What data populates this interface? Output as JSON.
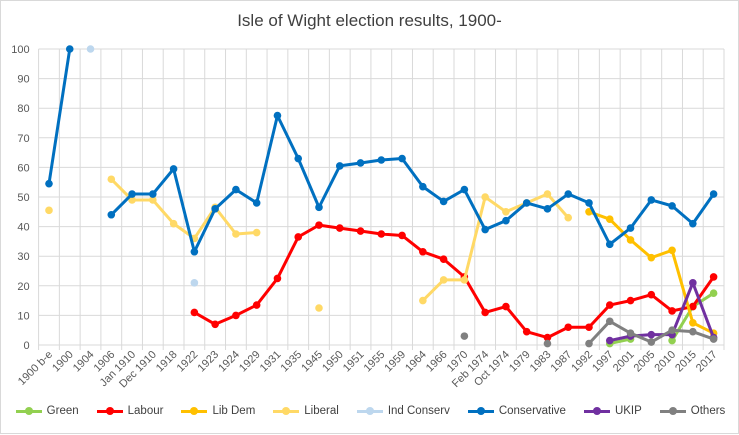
{
  "chart_data": {
    "type": "line",
    "title": "Isle of Wight election  results, 1900-",
    "xlabel": "",
    "ylabel": "",
    "ylim": [
      0,
      100
    ],
    "yticks": [
      0,
      10,
      20,
      30,
      40,
      50,
      60,
      70,
      80,
      90,
      100
    ],
    "grid": true,
    "legend_position": "bottom",
    "categories": [
      "1900 b-e",
      "1900",
      "1904",
      "1906",
      "Jan 1910",
      "Dec 1910",
      "1918",
      "1922",
      "1923",
      "1924",
      "1929",
      "1931",
      "1935",
      "1945",
      "1950",
      "1951",
      "1955",
      "1959",
      "1964",
      "1966",
      "1970",
      "Feb 1974",
      "Oct 1974",
      "1979",
      "1983",
      "1987",
      "1992",
      "1997",
      "2001",
      "2005",
      "2010",
      "2015",
      "2017"
    ],
    "series": [
      {
        "name": "Green",
        "color": "#92d050",
        "values": [
          null,
          null,
          null,
          null,
          null,
          null,
          null,
          null,
          null,
          null,
          null,
          null,
          null,
          null,
          null,
          null,
          null,
          null,
          null,
          null,
          null,
          null,
          null,
          null,
          null,
          null,
          null,
          0.5,
          2,
          null,
          1.5,
          13,
          17.5
        ]
      },
      {
        "name": "Labour",
        "color": "#ff0000",
        "values": [
          null,
          null,
          null,
          null,
          null,
          null,
          null,
          11,
          7,
          10,
          13.5,
          22.5,
          36.5,
          40.5,
          39.5,
          38.5,
          37.5,
          37,
          31.5,
          29,
          23,
          11,
          13,
          4.5,
          2.5,
          6,
          6,
          13.5,
          15,
          17,
          11.5,
          13,
          23
        ]
      },
      {
        "name": "Lib Dem",
        "color": "#ffc000",
        "values": [
          null,
          null,
          null,
          null,
          null,
          null,
          null,
          null,
          null,
          null,
          null,
          null,
          null,
          null,
          null,
          null,
          null,
          null,
          null,
          null,
          null,
          null,
          null,
          null,
          null,
          null,
          45,
          42.5,
          35.5,
          29.5,
          32,
          7.5,
          4
        ]
      },
      {
        "name": "Liberal",
        "color": "#ffd966",
        "values": [
          45.5,
          null,
          null,
          56,
          49,
          49,
          41,
          36,
          46.5,
          37.5,
          38,
          null,
          null,
          12.5,
          null,
          null,
          null,
          null,
          15,
          22,
          22,
          50,
          45,
          48,
          51,
          43,
          null,
          null,
          null,
          null,
          null,
          null,
          null
        ]
      },
      {
        "name": "Ind Conserv",
        "color": "#bdd7ee",
        "values": [
          null,
          null,
          100,
          null,
          null,
          null,
          null,
          21,
          null,
          null,
          null,
          null,
          null,
          null,
          null,
          null,
          null,
          null,
          null,
          null,
          null,
          null,
          null,
          null,
          null,
          null,
          null,
          null,
          null,
          null,
          null,
          null,
          null
        ]
      },
      {
        "name": "Conservative",
        "color": "#0070c0",
        "values": [
          54.5,
          100,
          null,
          44,
          51,
          51,
          59.5,
          31.5,
          46,
          52.5,
          48,
          77.5,
          63,
          46.5,
          60.5,
          61.5,
          62.5,
          63,
          53.5,
          48.5,
          52.5,
          39,
          42,
          48,
          46,
          51,
          48,
          34,
          39.5,
          49,
          47,
          41,
          51
        ]
      },
      {
        "name": "UKIP",
        "color": "#7030a0",
        "values": [
          null,
          null,
          null,
          null,
          null,
          null,
          null,
          null,
          null,
          null,
          null,
          null,
          null,
          null,
          null,
          null,
          null,
          null,
          null,
          null,
          null,
          null,
          null,
          null,
          null,
          null,
          null,
          1.5,
          3,
          3.5,
          3.5,
          21,
          2.5
        ]
      },
      {
        "name": "Others",
        "color": "#808080",
        "values": [
          null,
          null,
          null,
          null,
          null,
          null,
          null,
          null,
          null,
          null,
          null,
          null,
          null,
          null,
          null,
          null,
          null,
          null,
          null,
          null,
          3,
          null,
          null,
          null,
          0.5,
          null,
          0.5,
          8,
          4,
          1,
          5,
          4.5,
          2
        ]
      }
    ]
  }
}
